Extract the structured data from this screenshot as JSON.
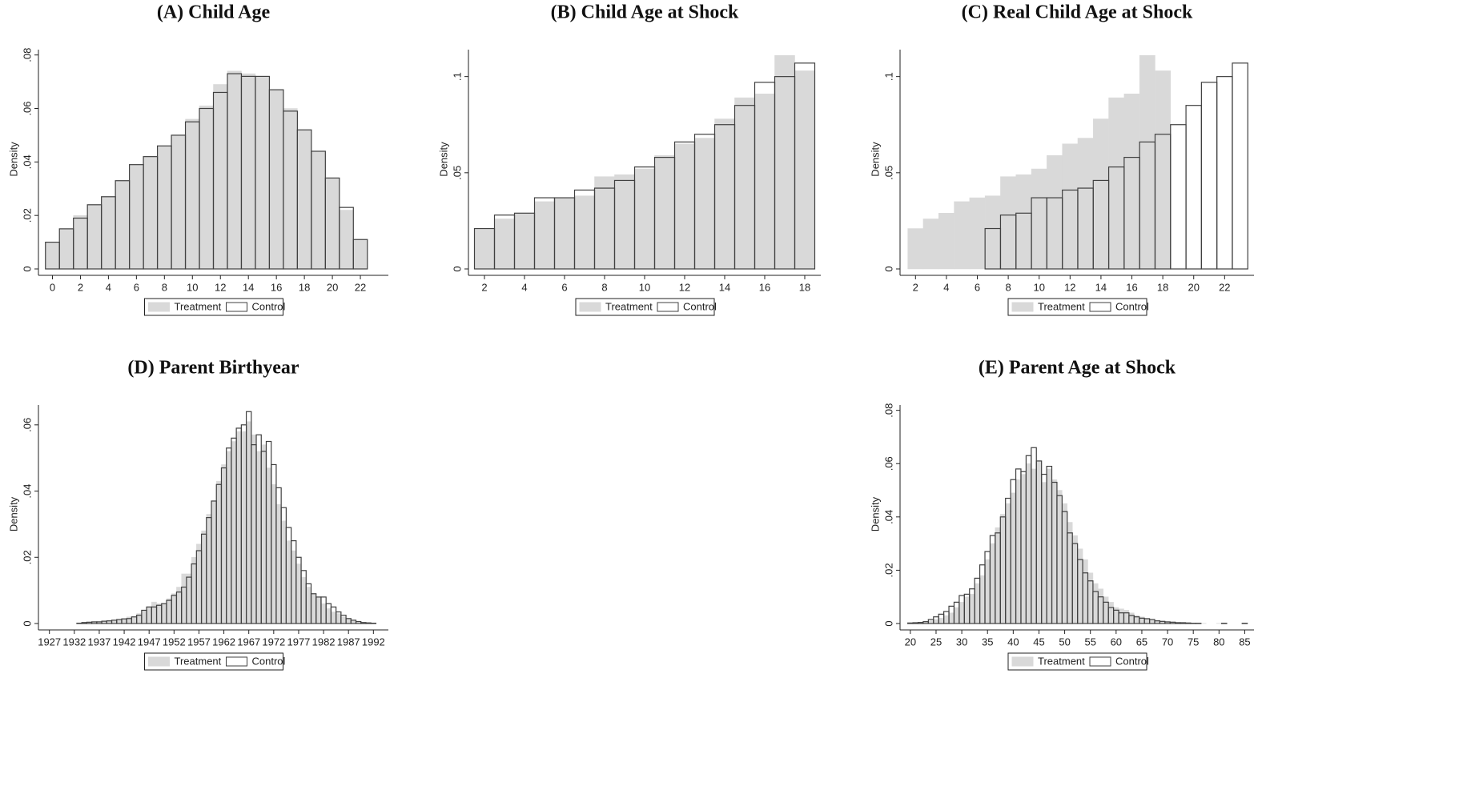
{
  "chart_data": [
    {
      "type": "histogram",
      "title": "(A) Child Age",
      "ylabel": "Density",
      "legend": "bottom",
      "xlim": [
        -1,
        24
      ],
      "ylim": [
        0,
        0.082
      ],
      "xticks": [
        0,
        2,
        4,
        6,
        8,
        10,
        12,
        14,
        16,
        18,
        20,
        22
      ],
      "yticks": [
        0,
        {
          "value": 0.02,
          "label": ".02"
        },
        {
          "value": 0.04,
          "label": ".04"
        },
        {
          "value": 0.06,
          "label": ".06"
        },
        {
          "value": 0.08,
          "label": ".08"
        }
      ],
      "bins": [
        -0.5,
        0.5,
        1.5,
        2.5,
        3.5,
        4.5,
        5.5,
        6.5,
        7.5,
        8.5,
        9.5,
        10.5,
        11.5,
        12.5,
        13.5,
        14.5,
        15.5,
        16.5,
        17.5,
        18.5,
        19.5,
        20.5,
        21.5,
        22.5
      ],
      "series": [
        {
          "name": "Treatment",
          "color": "#d9d9d9",
          "style": "filled",
          "values": [
            0.01,
            0.015,
            0.02,
            0.024,
            0.027,
            0.033,
            0.039,
            0.042,
            0.046,
            0.05,
            0.056,
            0.061,
            0.069,
            0.074,
            0.073,
            0.072,
            0.067,
            0.06,
            0.052,
            0.044,
            0.034,
            0.022,
            0.011
          ]
        },
        {
          "name": "Control",
          "color": "#404040",
          "style": "outline",
          "values": [
            0.01,
            0.015,
            0.019,
            0.024,
            0.027,
            0.033,
            0.039,
            0.042,
            0.046,
            0.05,
            0.055,
            0.06,
            0.066,
            0.073,
            0.072,
            0.072,
            0.067,
            0.059,
            0.052,
            0.044,
            0.034,
            0.023,
            0.011
          ]
        }
      ]
    },
    {
      "type": "histogram",
      "title": "(B) Child Age at Shock",
      "ylabel": "Density",
      "legend": "bottom",
      "xlim": [
        1.2,
        18.8
      ],
      "ylim": [
        0,
        0.114
      ],
      "xticks": [
        2,
        4,
        6,
        8,
        10,
        12,
        14,
        16,
        18
      ],
      "yticks": [
        0,
        {
          "value": 0.05,
          "label": ".05"
        },
        {
          "value": 0.1,
          "label": ".1"
        }
      ],
      "bins": [
        1.5,
        2.5,
        3.5,
        4.5,
        5.5,
        6.5,
        7.5,
        8.5,
        9.5,
        10.5,
        11.5,
        12.5,
        13.5,
        14.5,
        15.5,
        16.5,
        17.5,
        18.5
      ],
      "series": [
        {
          "name": "Treatment",
          "color": "#d9d9d9",
          "style": "filled",
          "values": [
            0.021,
            0.026,
            0.029,
            0.035,
            0.037,
            0.038,
            0.048,
            0.049,
            0.052,
            0.059,
            0.065,
            0.068,
            0.078,
            0.089,
            0.091,
            0.111,
            0.103
          ]
        },
        {
          "name": "Control",
          "color": "#404040",
          "style": "outline",
          "values": [
            0.021,
            0.028,
            0.029,
            0.037,
            0.037,
            0.041,
            0.042,
            0.046,
            0.053,
            0.058,
            0.066,
            0.07,
            0.075,
            0.085,
            0.097,
            0.1,
            0.107
          ]
        }
      ]
    },
    {
      "type": "histogram",
      "title": "(C) Real Child Age at Shock",
      "ylabel": "Density",
      "legend": "bottom",
      "xlim": [
        1,
        23.9
      ],
      "ylim": [
        0,
        0.114
      ],
      "xticks": [
        2,
        4,
        6,
        8,
        10,
        12,
        14,
        16,
        18,
        20,
        22
      ],
      "yticks": [
        0,
        {
          "value": 0.05,
          "label": ".05"
        },
        {
          "value": 0.1,
          "label": ".1"
        }
      ],
      "series": [
        {
          "name": "Treatment",
          "color": "#d9d9d9",
          "style": "filled",
          "bins": [
            1.5,
            2.5,
            3.5,
            4.5,
            5.5,
            6.5,
            7.5,
            8.5,
            9.5,
            10.5,
            11.5,
            12.5,
            13.5,
            14.5,
            15.5,
            16.5,
            17.5,
            18.5
          ],
          "values": [
            0.021,
            0.026,
            0.029,
            0.035,
            0.037,
            0.038,
            0.048,
            0.049,
            0.052,
            0.059,
            0.065,
            0.068,
            0.078,
            0.089,
            0.091,
            0.111,
            0.103
          ]
        },
        {
          "name": "Control",
          "color": "#404040",
          "style": "outline",
          "bins": [
            6.5,
            7.5,
            8.5,
            9.5,
            10.5,
            11.5,
            12.5,
            13.5,
            14.5,
            15.5,
            16.5,
            17.5,
            18.5,
            19.5,
            20.5,
            21.5,
            22.5,
            23.5
          ],
          "values": [
            0.021,
            0.028,
            0.029,
            0.037,
            0.037,
            0.041,
            0.042,
            0.046,
            0.053,
            0.058,
            0.066,
            0.07,
            0.075,
            0.085,
            0.097,
            0.1,
            0.107
          ]
        }
      ]
    },
    {
      "type": "histogram",
      "title": "(D) Parent Birthyear",
      "ylabel": "Density",
      "legend": "bottom",
      "xlim": [
        1924.8,
        1995
      ],
      "ylim": [
        0,
        0.066
      ],
      "xticks": [
        1927,
        1932,
        1937,
        1942,
        1947,
        1952,
        1957,
        1962,
        1967,
        1972,
        1977,
        1982,
        1987,
        1992
      ],
      "yticks": [
        0,
        {
          "value": 0.02,
          "label": ".02"
        },
        {
          "value": 0.04,
          "label": ".04"
        },
        {
          "value": 0.06,
          "label": ".06"
        }
      ],
      "bins": [
        1926.5,
        1927.5,
        1928.5,
        1929.5,
        1930.5,
        1931.5,
        1932.5,
        1933.5,
        1934.5,
        1935.5,
        1936.5,
        1937.5,
        1938.5,
        1939.5,
        1940.5,
        1941.5,
        1942.5,
        1943.5,
        1944.5,
        1945.5,
        1946.5,
        1947.5,
        1948.5,
        1949.5,
        1950.5,
        1951.5,
        1952.5,
        1953.5,
        1954.5,
        1955.5,
        1956.5,
        1957.5,
        1958.5,
        1959.5,
        1960.5,
        1961.5,
        1962.5,
        1963.5,
        1964.5,
        1965.5,
        1966.5,
        1967.5,
        1968.5,
        1969.5,
        1970.5,
        1971.5,
        1972.5,
        1973.5,
        1974.5,
        1975.5,
        1976.5,
        1977.5,
        1978.5,
        1979.5,
        1980.5,
        1981.5,
        1982.5,
        1983.5,
        1984.5,
        1985.5,
        1986.5,
        1987.5,
        1988.5,
        1989.5,
        1990.5,
        1991.5,
        1992.5
      ],
      "series": [
        {
          "name": "Treatment",
          "color": "#d9d9d9",
          "style": "filled",
          "values": [
            0,
            0,
            0,
            0,
            0,
            0,
            0.0002,
            0.0002,
            0.0003,
            0.0004,
            0.0006,
            0.0006,
            0.0008,
            0.001,
            0.0012,
            0.0015,
            0.002,
            0.002,
            0.003,
            0.004,
            0.005,
            0.0065,
            0.006,
            0.006,
            0.0075,
            0.009,
            0.011,
            0.015,
            0.015,
            0.02,
            0.024,
            0.028,
            0.033,
            0.037,
            0.043,
            0.048,
            0.052,
            0.055,
            0.058,
            0.058,
            0.061,
            0.057,
            0.052,
            0.054,
            0.047,
            0.042,
            0.036,
            0.031,
            0.025,
            0.022,
            0.018,
            0.014,
            0.011,
            0.009,
            0.008,
            0.006,
            0.0045,
            0.0035,
            0.003,
            0.002,
            0.0015,
            0.001,
            0.0005,
            0.0003,
            0.0001,
            0.0001
          ]
        },
        {
          "name": "Control",
          "color": "#404040",
          "style": "outline",
          "values": [
            0,
            0,
            0,
            0,
            0,
            0,
            0.0001,
            0.0003,
            0.0004,
            0.0005,
            0.0005,
            0.0007,
            0.0008,
            0.001,
            0.0012,
            0.0014,
            0.0015,
            0.002,
            0.0025,
            0.004,
            0.005,
            0.005,
            0.0055,
            0.006,
            0.007,
            0.0085,
            0.0095,
            0.011,
            0.014,
            0.018,
            0.022,
            0.027,
            0.032,
            0.037,
            0.042,
            0.047,
            0.053,
            0.056,
            0.059,
            0.06,
            0.064,
            0.054,
            0.057,
            0.052,
            0.055,
            0.048,
            0.041,
            0.035,
            0.029,
            0.025,
            0.02,
            0.016,
            0.012,
            0.009,
            0.008,
            0.008,
            0.006,
            0.005,
            0.0035,
            0.0025,
            0.0015,
            0.001,
            0.0006,
            0.0003,
            0.0002,
            0.0001
          ]
        }
      ]
    },
    {
      "type": "histogram",
      "title": "(E) Parent Age at Shock",
      "ylabel": "Density",
      "legend": "bottom",
      "xlim": [
        18,
        86.8
      ],
      "ylim": [
        0,
        0.082
      ],
      "xticks": [
        20,
        25,
        30,
        35,
        40,
        45,
        50,
        55,
        60,
        65,
        70,
        75,
        80,
        85
      ],
      "yticks": [
        0,
        {
          "value": 0.02,
          "label": ".02"
        },
        {
          "value": 0.04,
          "label": ".04"
        },
        {
          "value": 0.06,
          "label": ".06"
        },
        {
          "value": 0.08,
          "label": ".08"
        }
      ],
      "bins": [
        19.5,
        20.5,
        21.5,
        22.5,
        23.5,
        24.5,
        25.5,
        26.5,
        27.5,
        28.5,
        29.5,
        30.5,
        31.5,
        32.5,
        33.5,
        34.5,
        35.5,
        36.5,
        37.5,
        38.5,
        39.5,
        40.5,
        41.5,
        42.5,
        43.5,
        44.5,
        45.5,
        46.5,
        47.5,
        48.5,
        49.5,
        50.5,
        51.5,
        52.5,
        53.5,
        54.5,
        55.5,
        56.5,
        57.5,
        58.5,
        59.5,
        60.5,
        61.5,
        62.5,
        63.5,
        64.5,
        65.5,
        66.5,
        67.5,
        68.5,
        69.5,
        70.5,
        71.5,
        72.5,
        73.5,
        74.5,
        75.5,
        76.5,
        77.5,
        78.5,
        79.5,
        80.5,
        81.5,
        82.5,
        83.5,
        84.5,
        85.5
      ],
      "series": [
        {
          "name": "Treatment",
          "color": "#d9d9d9",
          "style": "filled",
          "values": [
            0.0002,
            0.0003,
            0.0005,
            0.0008,
            0.001,
            0.0015,
            0.002,
            0.003,
            0.004,
            0.006,
            0.008,
            0.01,
            0.011,
            0.015,
            0.018,
            0.024,
            0.03,
            0.036,
            0.041,
            0.045,
            0.049,
            0.054,
            0.056,
            0.06,
            0.058,
            0.061,
            0.053,
            0.058,
            0.054,
            0.05,
            0.045,
            0.038,
            0.033,
            0.028,
            0.024,
            0.019,
            0.015,
            0.013,
            0.01,
            0.008,
            0.006,
            0.0055,
            0.005,
            0.004,
            0.003,
            0.0025,
            0.002,
            0.0015,
            0.0012,
            0.001,
            0.0008,
            0.0006,
            0.0005,
            0.0004,
            0.0003,
            0.0002,
            0.0001,
            0.0001,
            0,
            0,
            0.0001,
            0.0001,
            0,
            0,
            0,
            0
          ]
        },
        {
          "name": "Control",
          "color": "#404040",
          "style": "outline",
          "values": [
            0.0002,
            0.0003,
            0.0004,
            0.0007,
            0.0015,
            0.0025,
            0.0035,
            0.0045,
            0.0065,
            0.008,
            0.0105,
            0.011,
            0.013,
            0.017,
            0.022,
            0.027,
            0.033,
            0.034,
            0.04,
            0.047,
            0.054,
            0.058,
            0.057,
            0.063,
            0.066,
            0.061,
            0.056,
            0.059,
            0.053,
            0.048,
            0.042,
            0.034,
            0.03,
            0.024,
            0.019,
            0.016,
            0.012,
            0.01,
            0.008,
            0.006,
            0.005,
            0.004,
            0.004,
            0.003,
            0.0025,
            0.002,
            0.0018,
            0.0015,
            0.001,
            0.0008,
            0.0006,
            0.0005,
            0.0003,
            0.0003,
            0.0002,
            0.0001,
            0.0001,
            0,
            0,
            0,
            0,
            0.0001,
            0,
            0,
            0,
            0.0001
          ]
        }
      ]
    }
  ]
}
